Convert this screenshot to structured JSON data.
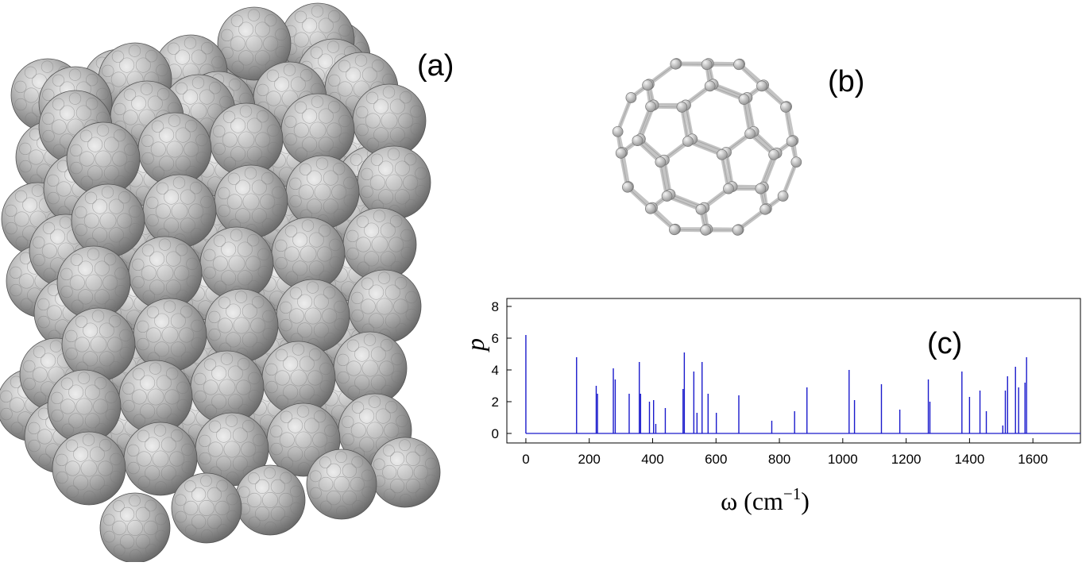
{
  "figure": {
    "panel_a_label": "(a)",
    "panel_b_label": "(b)"
  },
  "colors": {
    "sphere_dark": "#6f6f6f",
    "sphere_light": "#e6e6e6",
    "bond": "#c4c4c4",
    "spectrum_line": "#1a1acc"
  },
  "chart_data": {
    "type": "bar",
    "panel_label": "(c)",
    "xlabel": "ω  (cm",
    "xlabel_sup": "−1",
    "xlabel_close": ")",
    "ylabel": "p",
    "xlim": [
      -60,
      1750
    ],
    "ylim": [
      -0.6,
      8.5
    ],
    "xticks": [
      0,
      200,
      400,
      600,
      800,
      1000,
      1200,
      1400,
      1600
    ],
    "yticks": [
      0,
      2,
      4,
      6,
      8
    ],
    "grid": false,
    "x": [
      0,
      160,
      222,
      226,
      276,
      282,
      326,
      358,
      362,
      390,
      403,
      410,
      440,
      496,
      500,
      530,
      540,
      556,
      575,
      601,
      672,
      776,
      848,
      887,
      1020,
      1037,
      1122,
      1180,
      1270,
      1275,
      1376,
      1400,
      1433,
      1453,
      1505,
      1513,
      1520,
      1545,
      1555,
      1575,
      1580
    ],
    "values": [
      6.2,
      4.8,
      3.0,
      2.5,
      4.1,
      3.4,
      2.5,
      4.5,
      2.5,
      2.0,
      2.1,
      0.6,
      1.6,
      2.8,
      5.1,
      3.9,
      1.3,
      4.5,
      2.5,
      1.3,
      2.4,
      0.8,
      1.4,
      2.9,
      4.0,
      2.1,
      3.1,
      1.5,
      3.4,
      2.0,
      3.9,
      2.3,
      2.7,
      1.4,
      0.5,
      2.7,
      3.6,
      4.2,
      2.9,
      3.2,
      4.8
    ]
  }
}
